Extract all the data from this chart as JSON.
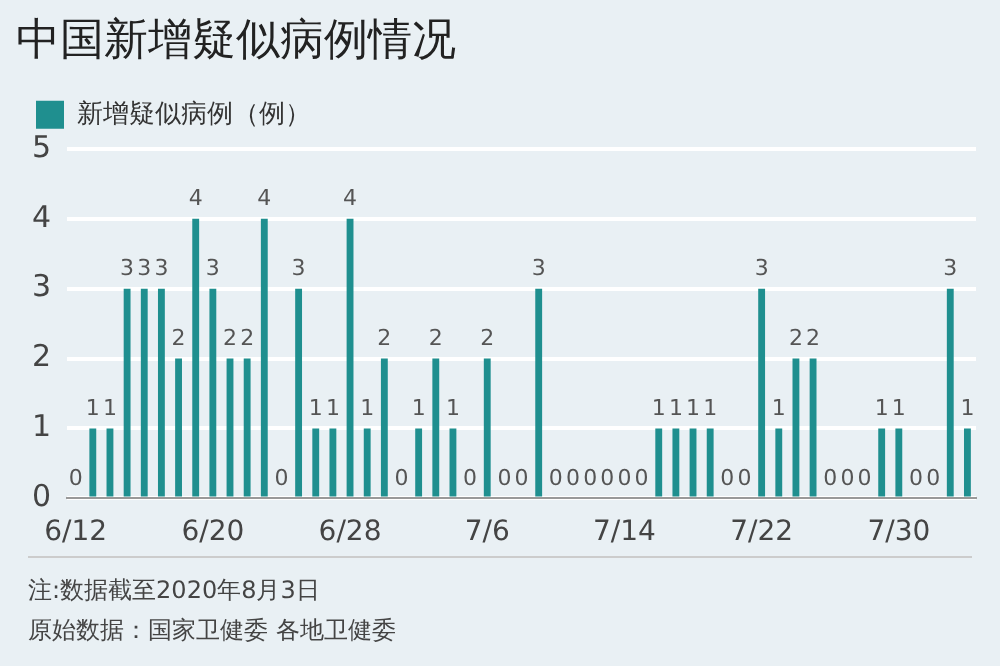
{
  "chart_data": {
    "type": "bar",
    "title": "中国新增疑似病例情况",
    "categories": [
      "6/12",
      null,
      null,
      null,
      null,
      null,
      null,
      null,
      "6/20",
      null,
      null,
      null,
      null,
      null,
      null,
      null,
      "6/28",
      null,
      null,
      null,
      null,
      null,
      null,
      null,
      "7/6",
      null,
      null,
      null,
      null,
      null,
      null,
      null,
      "7/14",
      null,
      null,
      null,
      null,
      null,
      null,
      null,
      "7/22",
      null,
      null,
      null,
      null,
      null,
      null,
      null,
      "7/30",
      null,
      null,
      null,
      null
    ],
    "series": [
      {
        "name": "新增疑似病例（例）",
        "color": "#1f8f8f",
        "values": [
          0,
          1,
          1,
          3,
          3,
          3,
          2,
          4,
          3,
          2,
          2,
          4,
          0,
          3,
          1,
          1,
          4,
          1,
          2,
          0,
          1,
          2,
          1,
          0,
          2,
          0,
          0,
          3,
          0,
          0,
          0,
          0,
          0,
          0,
          1,
          1,
          1,
          1,
          0,
          0,
          3,
          1,
          2,
          2,
          0,
          0,
          0,
          1,
          1,
          0,
          0,
          3,
          1
        ]
      }
    ],
    "ylim": [
      0,
      5
    ],
    "yticks": [
      0,
      1,
      2,
      3,
      4,
      5
    ],
    "grid": "y",
    "legend": "top left",
    "data_labels": true,
    "annotations": [
      "注:数据截至2020年8月3日",
      "原始数据：国家卫健委 各地卫健委"
    ]
  }
}
